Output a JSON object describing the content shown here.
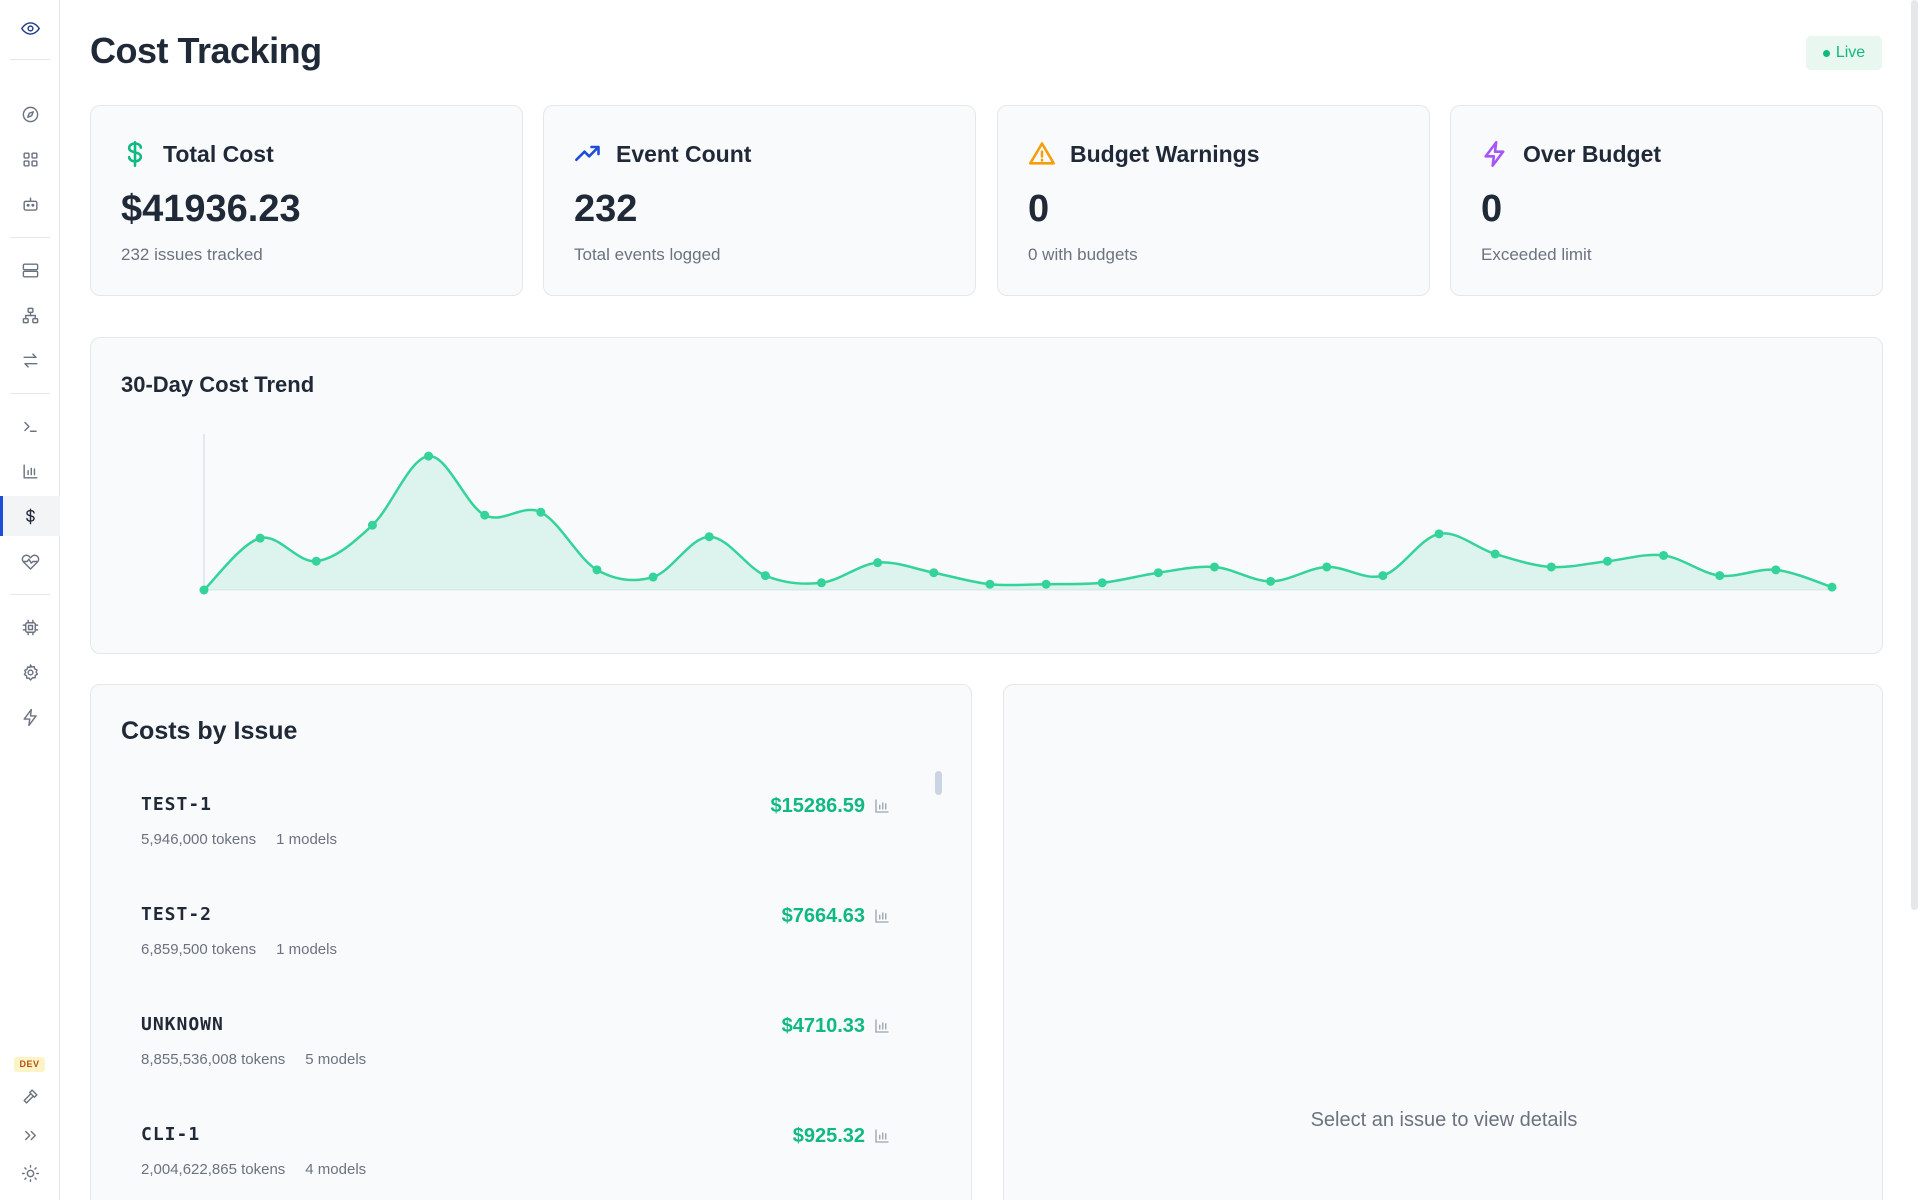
{
  "header": {
    "title": "Cost Tracking",
    "status": "Live"
  },
  "sidebar": {
    "dev_badge": "DEV",
    "items": [
      {
        "icon": "eye-icon",
        "name": "sidebar-logo"
      },
      {
        "icon": "compass-icon",
        "name": "sidebar-item-explore"
      },
      {
        "icon": "grid-icon",
        "name": "sidebar-item-dashboard"
      },
      {
        "icon": "bot-icon",
        "name": "sidebar-item-agents"
      },
      {
        "icon": "server-icon",
        "name": "sidebar-item-servers"
      },
      {
        "icon": "network-icon",
        "name": "sidebar-item-network"
      },
      {
        "icon": "arrows-swap-icon",
        "name": "sidebar-item-transfers"
      },
      {
        "icon": "terminal-icon",
        "name": "sidebar-item-terminal"
      },
      {
        "icon": "bar-chart-icon",
        "name": "sidebar-item-analytics"
      },
      {
        "icon": "dollar-icon",
        "name": "sidebar-item-costs",
        "active": true
      },
      {
        "icon": "heart-pulse-icon",
        "name": "sidebar-item-health"
      },
      {
        "icon": "cpu-icon",
        "name": "sidebar-item-models"
      },
      {
        "icon": "gear-icon",
        "name": "sidebar-item-settings"
      },
      {
        "icon": "zap-icon",
        "name": "sidebar-item-automations"
      },
      {
        "icon": "hammer-icon",
        "name": "sidebar-item-dev-tools"
      },
      {
        "icon": "chevrons-right-icon",
        "name": "sidebar-expand"
      },
      {
        "icon": "sun-icon",
        "name": "sidebar-theme-toggle"
      }
    ]
  },
  "stats": [
    {
      "label": "Total Cost",
      "value": "$41936.23",
      "sub": "232 issues tracked",
      "icon": "dollar-icon",
      "color": "#10b981"
    },
    {
      "label": "Event Count",
      "value": "232",
      "sub": "Total events logged",
      "icon": "trending-up-icon",
      "color": "#1d4ed8"
    },
    {
      "label": "Budget Warnings",
      "value": "0",
      "sub": "0 with budgets",
      "icon": "warning-icon",
      "color": "#f59e0b"
    },
    {
      "label": "Over Budget",
      "value": "0",
      "sub": "Exceeded limit",
      "icon": "zap-icon",
      "color": "#a855f7"
    }
  ],
  "trend": {
    "title": "30-Day Cost Trend",
    "color": "#34d399"
  },
  "chart_data": {
    "type": "area",
    "title": "30-Day Cost Trend",
    "x": [
      1,
      2,
      3,
      4,
      5,
      6,
      7,
      8,
      9,
      10,
      11,
      12,
      13,
      14,
      15,
      16,
      17,
      18,
      19,
      20,
      21,
      22,
      23,
      24,
      25,
      26,
      27,
      28,
      29,
      30
    ],
    "values": [
      0,
      36,
      20,
      45,
      93,
      52,
      54,
      14,
      9,
      37,
      10,
      5,
      19,
      12,
      4,
      4,
      5,
      12,
      16,
      6,
      16,
      10,
      39,
      25,
      16,
      20,
      24,
      10,
      14,
      2
    ],
    "ylim": [
      0,
      100
    ],
    "grid": false,
    "legend": "none"
  },
  "issues": {
    "title": "Costs by Issue",
    "rows": [
      {
        "key": "TEST-1",
        "cost": "$15286.59",
        "tokens": "5,946,000 tokens",
        "models": "1 models"
      },
      {
        "key": "TEST-2",
        "cost": "$7664.63",
        "tokens": "6,859,500 tokens",
        "models": "1 models"
      },
      {
        "key": "UNKNOWN",
        "cost": "$4710.33",
        "tokens": "8,855,536,008 tokens",
        "models": "5 models"
      },
      {
        "key": "CLI-1",
        "cost": "$925.32",
        "tokens": "2,004,622,865 tokens",
        "models": "4 models"
      }
    ]
  },
  "detail": {
    "empty": "Select an issue to view details"
  }
}
